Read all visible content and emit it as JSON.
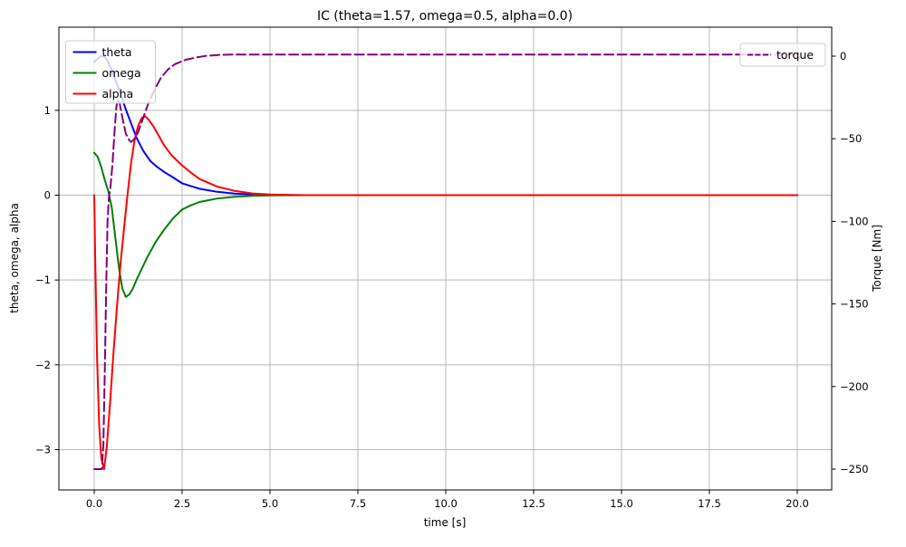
{
  "title": "IC (theta=1.57, omega=0.5, alpha=0.0)",
  "colors": {
    "theta": "#0000ff",
    "omega": "#008000",
    "alpha": "#ff0000",
    "torque": "#800080",
    "grid": "#b8b8b8",
    "spine": "#000000",
    "legend_border": "#cccccc",
    "legend_fill": "#ffffff"
  },
  "legend_left_labels": [
    "theta",
    "omega",
    "alpha"
  ],
  "legend_right_labels": [
    "torque"
  ],
  "chart_data": {
    "type": "line",
    "title": "IC (theta=1.57, omega=0.5, alpha=0.0)",
    "xlabel": "time [s]",
    "ylabel_left": "theta, omega, alpha",
    "ylabel_right": "Torque [Nm]",
    "xlim": [
      -1.0,
      21.0
    ],
    "ylim_left": [
      -3.48,
      1.98
    ],
    "ylim_right": [
      -263.0,
      13.5
    ],
    "grid": true,
    "legend_left_position": "upper left",
    "legend_right_position": "upper right",
    "x_ticks": [
      0,
      2.5,
      5,
      7.5,
      10,
      12.5,
      15,
      17.5,
      20
    ],
    "x_tick_labels": [
      "0.0",
      "2.5",
      "5.0",
      "7.5",
      "10.0",
      "12.5",
      "15.0",
      "17.5",
      "20.0"
    ],
    "y_left_ticks": [
      1,
      0,
      -1,
      -2,
      -3
    ],
    "y_left_tick_labels": [
      "1",
      "0",
      "−1",
      "−2",
      "−3"
    ],
    "y_right_ticks": [
      0,
      -50,
      -100,
      -150,
      -200,
      -250
    ],
    "y_right_tick_labels": [
      "0",
      "−50",
      "−100",
      "−150",
      "−200",
      "−250"
    ],
    "series": [
      {
        "name": "theta",
        "yaxis": "left",
        "color": "#0000ff",
        "linestyle": "solid",
        "legend": "left",
        "points": [
          [
            0,
            1.57
          ],
          [
            0.1,
            1.61
          ],
          [
            0.2,
            1.64
          ],
          [
            0.3,
            1.63
          ],
          [
            0.4,
            1.57
          ],
          [
            0.5,
            1.47
          ],
          [
            0.6,
            1.36
          ],
          [
            0.7,
            1.25
          ],
          [
            0.8,
            1.13
          ],
          [
            0.9,
            1.01
          ],
          [
            1.0,
            0.9
          ],
          [
            1.1,
            0.79
          ],
          [
            1.2,
            0.68
          ],
          [
            1.3,
            0.6
          ],
          [
            1.4,
            0.52
          ],
          [
            1.5,
            0.46
          ],
          [
            1.6,
            0.4
          ],
          [
            1.8,
            0.33
          ],
          [
            2.0,
            0.27
          ],
          [
            2.2,
            0.22
          ],
          [
            2.5,
            0.14
          ],
          [
            2.8,
            0.1
          ],
          [
            3.0,
            0.075
          ],
          [
            3.5,
            0.04
          ],
          [
            4.0,
            0.018
          ],
          [
            4.5,
            0.008
          ],
          [
            5.0,
            0.003
          ],
          [
            5.5,
            0.001
          ],
          [
            6,
            0
          ],
          [
            8,
            0
          ],
          [
            10,
            0
          ],
          [
            12,
            0
          ],
          [
            14,
            0
          ],
          [
            16,
            0
          ],
          [
            18,
            0
          ],
          [
            20,
            0
          ]
        ]
      },
      {
        "name": "omega",
        "yaxis": "left",
        "color": "#008000",
        "linestyle": "solid",
        "legend": "left",
        "points": [
          [
            0,
            0.5
          ],
          [
            0.1,
            0.45
          ],
          [
            0.2,
            0.33
          ],
          [
            0.3,
            0.18
          ],
          [
            0.4,
            0.05
          ],
          [
            0.5,
            -0.15
          ],
          [
            0.6,
            -0.5
          ],
          [
            0.7,
            -0.85
          ],
          [
            0.8,
            -1.1
          ],
          [
            0.9,
            -1.2
          ],
          [
            1.0,
            -1.17
          ],
          [
            1.1,
            -1.1
          ],
          [
            1.2,
            -1.0
          ],
          [
            1.35,
            -0.87
          ],
          [
            1.5,
            -0.74
          ],
          [
            1.75,
            -0.55
          ],
          [
            2.0,
            -0.4
          ],
          [
            2.25,
            -0.27
          ],
          [
            2.5,
            -0.17
          ],
          [
            2.75,
            -0.12
          ],
          [
            3.0,
            -0.08
          ],
          [
            3.5,
            -0.04
          ],
          [
            4.0,
            -0.018
          ],
          [
            4.5,
            -0.008
          ],
          [
            5.0,
            -0.003
          ],
          [
            5.5,
            -0.001
          ],
          [
            6,
            0
          ],
          [
            8,
            0
          ],
          [
            10,
            0
          ],
          [
            12,
            0
          ],
          [
            14,
            0
          ],
          [
            16,
            0
          ],
          [
            18,
            0
          ],
          [
            20,
            0
          ]
        ]
      },
      {
        "name": "alpha",
        "yaxis": "left",
        "color": "#ff0000",
        "linestyle": "solid",
        "legend": "left",
        "points": [
          [
            0,
            0
          ],
          [
            0.03,
            -0.8
          ],
          [
            0.08,
            -1.9
          ],
          [
            0.14,
            -2.7
          ],
          [
            0.2,
            -3.1
          ],
          [
            0.28,
            -3.23
          ],
          [
            0.36,
            -2.95
          ],
          [
            0.45,
            -2.45
          ],
          [
            0.55,
            -1.85
          ],
          [
            0.65,
            -1.3
          ],
          [
            0.75,
            -0.8
          ],
          [
            0.85,
            -0.38
          ],
          [
            0.95,
            0.02
          ],
          [
            1.05,
            0.38
          ],
          [
            1.15,
            0.65
          ],
          [
            1.25,
            0.82
          ],
          [
            1.35,
            0.91
          ],
          [
            1.45,
            0.93
          ],
          [
            1.55,
            0.89
          ],
          [
            1.7,
            0.8
          ],
          [
            1.85,
            0.69
          ],
          [
            2.0,
            0.58
          ],
          [
            2.2,
            0.47
          ],
          [
            2.5,
            0.35
          ],
          [
            2.8,
            0.25
          ],
          [
            3.0,
            0.19
          ],
          [
            3.5,
            0.1
          ],
          [
            4.0,
            0.05
          ],
          [
            4.5,
            0.02
          ],
          [
            5.0,
            0.008
          ],
          [
            5.5,
            0.003
          ],
          [
            6,
            0
          ],
          [
            8,
            0
          ],
          [
            10,
            0
          ],
          [
            12,
            0
          ],
          [
            14,
            0
          ],
          [
            16,
            0
          ],
          [
            18,
            0
          ],
          [
            20,
            0
          ]
        ]
      },
      {
        "name": "torque",
        "yaxis": "right",
        "color": "#800080",
        "linestyle": "dashed",
        "legend": "right",
        "points": [
          [
            0,
            -250
          ],
          [
            0.22,
            -250
          ],
          [
            0.26,
            -235
          ],
          [
            0.3,
            -193
          ],
          [
            0.34,
            -140
          ],
          [
            0.38,
            -100
          ],
          [
            0.42,
            -85
          ],
          [
            0.46,
            -80
          ],
          [
            0.52,
            -65
          ],
          [
            0.58,
            -45
          ],
          [
            0.63,
            -31
          ],
          [
            0.67,
            -26
          ],
          [
            0.72,
            -28
          ],
          [
            0.8,
            -37
          ],
          [
            0.9,
            -47
          ],
          [
            1.0,
            -51
          ],
          [
            1.05,
            -52
          ],
          [
            1.15,
            -50
          ],
          [
            1.25,
            -46
          ],
          [
            1.4,
            -37
          ],
          [
            1.55,
            -28
          ],
          [
            1.7,
            -21
          ],
          [
            1.9,
            -13
          ],
          [
            2.1,
            -8
          ],
          [
            2.3,
            -4.8
          ],
          [
            2.6,
            -2.2
          ],
          [
            2.9,
            -0.8
          ],
          [
            3.2,
            0.2
          ],
          [
            3.6,
            0.8
          ],
          [
            4.0,
            1.0
          ],
          [
            5,
            1.0
          ],
          [
            6,
            1.0
          ],
          [
            8,
            1.0
          ],
          [
            10,
            1.0
          ],
          [
            12,
            1.0
          ],
          [
            14,
            1.0
          ],
          [
            16,
            1.0
          ],
          [
            18,
            1.0
          ],
          [
            20,
            1.0
          ]
        ]
      }
    ]
  }
}
